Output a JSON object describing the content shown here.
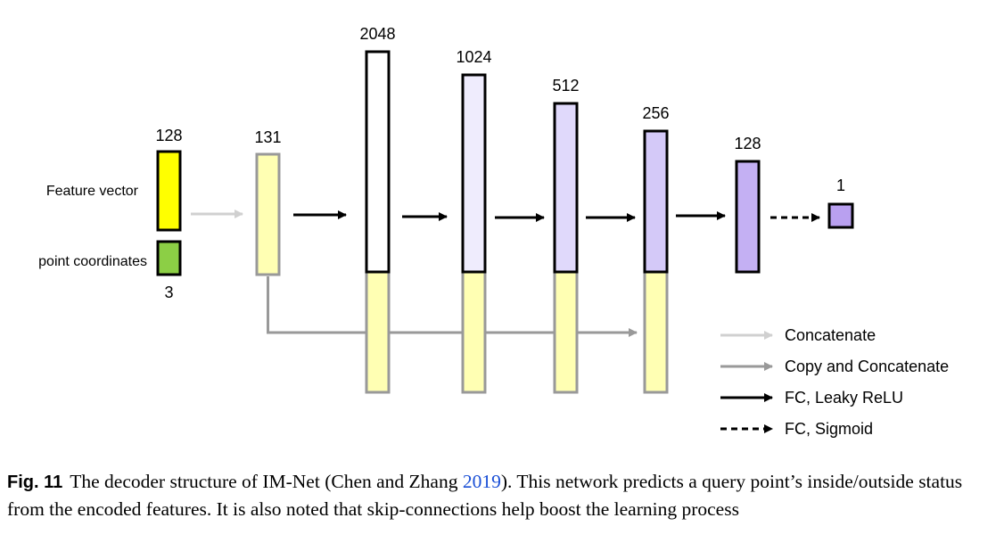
{
  "figure": {
    "colors": {
      "feature_vector": "#ffff00",
      "point_coordinates": "#8ccf45",
      "concat_yellow": "#ffffb3",
      "layer_white": "#ffffff",
      "layer_lavender_light": "#efecfd",
      "layer_lavender": "#e0d9fb",
      "layer_lavender_mid": "#d4c9f8",
      "layer_purple": "#c4b0f3",
      "output_purple": "#b9a0f0",
      "arrow_concatenate": "#d0d0d0",
      "arrow_copy": "#999999",
      "arrow_fc": "#000000",
      "box_border_dark": "#000000",
      "box_border_gray": "#999999"
    },
    "inputs": {
      "feature_vector": {
        "label": "Feature vector",
        "size": "128"
      },
      "point_coordinates": {
        "label": "point coordinates",
        "size": "3"
      }
    },
    "layers": [
      {
        "size": "131"
      },
      {
        "size": "2048"
      },
      {
        "size": "1024"
      },
      {
        "size": "512"
      },
      {
        "size": "256"
      },
      {
        "size": "128"
      },
      {
        "size": "1"
      }
    ],
    "legend": [
      {
        "style": "light-arrow",
        "label": "Concatenate"
      },
      {
        "style": "gray-arrow",
        "label": "Copy and Concatenate"
      },
      {
        "style": "black-arrow",
        "label": "FC, Leaky ReLU"
      },
      {
        "style": "dashed-arrow",
        "label": "FC, Sigmoid"
      }
    ]
  },
  "caption": {
    "label": "Fig. 11",
    "text_before_cite": "The decoder structure of IM-Net (Chen and Zhang ",
    "cite_year": "2019",
    "text_after_cite": "). This network predicts a query point’s inside/outside status from the encoded features. It is also noted that skip-connections help boost the learning process"
  }
}
